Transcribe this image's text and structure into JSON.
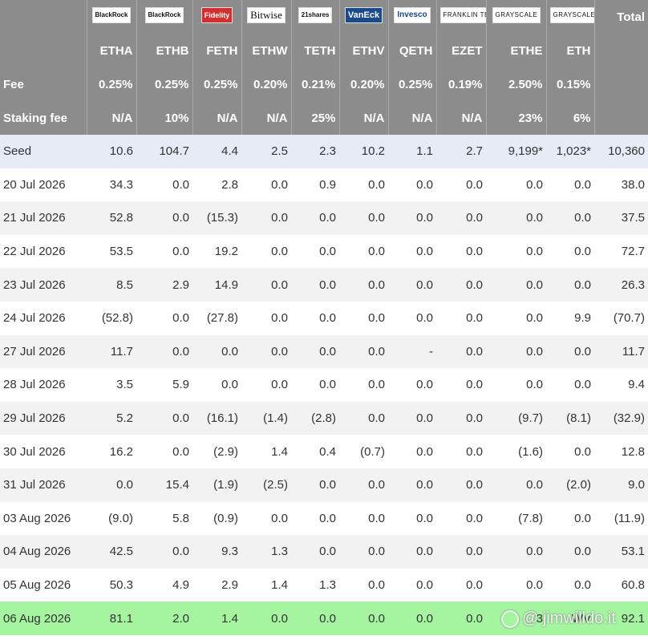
{
  "logos": [
    "BlackRock",
    "BlackRock",
    "Fidelity",
    "Bitwise",
    "21shares",
    "VanEck",
    "Invesco",
    "FRANKLIN TEMPLETON",
    "GRAYSCALE",
    "GRAYSCALE"
  ],
  "total_label": "Total",
  "tickers": [
    "ETHA",
    "ETHB",
    "FETH",
    "ETHW",
    "TETH",
    "ETHV",
    "QETH",
    "EZET",
    "ETHE",
    "ETH"
  ],
  "fee": {
    "label": "Fee",
    "values": [
      "0.25%",
      "0.25%",
      "0.25%",
      "0.20%",
      "0.21%",
      "0.20%",
      "0.25%",
      "0.19%",
      "2.50%",
      "0.15%"
    ]
  },
  "staking": {
    "label": "Staking fee",
    "values": [
      "N/A",
      "10%",
      "N/A",
      "N/A",
      "25%",
      "N/A",
      "N/A",
      "N/A",
      "23%",
      "6%"
    ]
  },
  "rows": [
    {
      "date": "Seed",
      "values": [
        "10.6",
        "104.7",
        "4.4",
        "2.5",
        "2.3",
        "10.2",
        "1.1",
        "2.7",
        "9,199*",
        "1,023*"
      ],
      "total": "10,360"
    },
    {
      "date": "20 Jul 2026",
      "values": [
        "34.3",
        "0.0",
        "2.8",
        "0.0",
        "0.9",
        "0.0",
        "0.0",
        "0.0",
        "0.0",
        "0.0"
      ],
      "total": "38.0"
    },
    {
      "date": "21 Jul 2026",
      "values": [
        "52.8",
        "0.0",
        "(15.3)",
        "0.0",
        "0.0",
        "0.0",
        "0.0",
        "0.0",
        "0.0",
        "0.0"
      ],
      "total": "37.5"
    },
    {
      "date": "22 Jul 2026",
      "values": [
        "53.5",
        "0.0",
        "19.2",
        "0.0",
        "0.0",
        "0.0",
        "0.0",
        "0.0",
        "0.0",
        "0.0"
      ],
      "total": "72.7"
    },
    {
      "date": "23 Jul 2026",
      "values": [
        "8.5",
        "2.9",
        "14.9",
        "0.0",
        "0.0",
        "0.0",
        "0.0",
        "0.0",
        "0.0",
        "0.0"
      ],
      "total": "26.3"
    },
    {
      "date": "24 Jul 2026",
      "values": [
        "(52.8)",
        "0.0",
        "(27.8)",
        "0.0",
        "0.0",
        "0.0",
        "0.0",
        "0.0",
        "0.0",
        "9.9"
      ],
      "total": "(70.7)"
    },
    {
      "date": "27 Jul 2026",
      "values": [
        "11.7",
        "0.0",
        "0.0",
        "0.0",
        "0.0",
        "0.0",
        "-",
        "0.0",
        "0.0",
        "0.0"
      ],
      "total": "11.7"
    },
    {
      "date": "28 Jul 2026",
      "values": [
        "3.5",
        "5.9",
        "0.0",
        "0.0",
        "0.0",
        "0.0",
        "0.0",
        "0.0",
        "0.0",
        "0.0"
      ],
      "total": "9.4"
    },
    {
      "date": "29 Jul 2026",
      "values": [
        "5.2",
        "0.0",
        "(16.1)",
        "(1.4)",
        "(2.8)",
        "0.0",
        "0.0",
        "0.0",
        "(9.7)",
        "(8.1)"
      ],
      "total": "(32.9)"
    },
    {
      "date": "30 Jul 2026",
      "values": [
        "16.2",
        "0.0",
        "(2.9)",
        "1.4",
        "0.4",
        "(0.7)",
        "0.0",
        "0.0",
        "(1.6)",
        "0.0"
      ],
      "total": "12.8"
    },
    {
      "date": "31 Jul 2026",
      "values": [
        "0.0",
        "15.4",
        "(1.9)",
        "(2.5)",
        "0.0",
        "0.0",
        "0.0",
        "0.0",
        "0.0",
        "(2.0)"
      ],
      "total": "9.0"
    },
    {
      "date": "03 Aug 2026",
      "values": [
        "(9.0)",
        "5.8",
        "(0.9)",
        "0.0",
        "0.0",
        "0.0",
        "0.0",
        "0.0",
        "(7.8)",
        "0.0"
      ],
      "total": "(11.9)"
    },
    {
      "date": "04 Aug 2026",
      "values": [
        "42.5",
        "0.0",
        "9.3",
        "1.3",
        "0.0",
        "0.0",
        "0.0",
        "0.0",
        "0.0",
        "0.0"
      ],
      "total": "53.1"
    },
    {
      "date": "05 Aug 2026",
      "values": [
        "50.3",
        "4.9",
        "2.9",
        "1.4",
        "1.3",
        "0.0",
        "0.0",
        "0.0",
        "0.0",
        "0.0"
      ],
      "total": "60.8"
    },
    {
      "date": "06 Aug 2026",
      "values": [
        "81.1",
        "2.0",
        "1.4",
        "0.0",
        "0.0",
        "0.0",
        "0.0",
        "0.0",
        "3",
        "WV"
      ],
      "total": "92.1"
    }
  ],
  "watermark": "@ jimwilldo.it"
}
